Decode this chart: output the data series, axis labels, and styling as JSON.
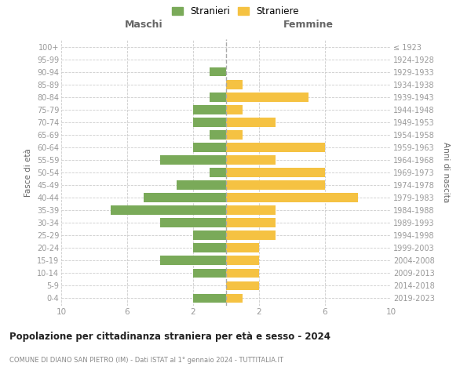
{
  "age_groups": [
    "100+",
    "95-99",
    "90-94",
    "85-89",
    "80-84",
    "75-79",
    "70-74",
    "65-69",
    "60-64",
    "55-59",
    "50-54",
    "45-49",
    "40-44",
    "35-39",
    "30-34",
    "25-29",
    "20-24",
    "15-19",
    "10-14",
    "5-9",
    "0-4"
  ],
  "birth_years": [
    "≤ 1923",
    "1924-1928",
    "1929-1933",
    "1934-1938",
    "1939-1943",
    "1944-1948",
    "1949-1953",
    "1954-1958",
    "1959-1963",
    "1964-1968",
    "1969-1973",
    "1974-1978",
    "1979-1983",
    "1984-1988",
    "1989-1993",
    "1994-1998",
    "1999-2003",
    "2004-2008",
    "2009-2013",
    "2014-2018",
    "2019-2023"
  ],
  "maschi": [
    0,
    0,
    1,
    0,
    1,
    2,
    2,
    1,
    2,
    4,
    1,
    3,
    5,
    7,
    4,
    2,
    2,
    4,
    2,
    0,
    2
  ],
  "femmine": [
    0,
    0,
    0,
    1,
    5,
    1,
    3,
    1,
    6,
    3,
    6,
    6,
    8,
    3,
    3,
    3,
    2,
    2,
    2,
    2,
    1
  ],
  "color_maschi": "#7aaa59",
  "color_femmine": "#f5c242",
  "bg_color": "#ffffff",
  "grid_color": "#cccccc",
  "title": "Popolazione per cittadinanza straniera per età e sesso - 2024",
  "subtitle": "COMUNE DI DIANO SAN PIETRO (IM) - Dati ISTAT al 1° gennaio 2024 - TUTTITALIA.IT",
  "left_header": "Maschi",
  "right_header": "Femmine",
  "left_axis_label": "Fasce di età",
  "right_axis_label": "Anni di nascita",
  "legend_maschi": "Stranieri",
  "legend_femmine": "Straniere"
}
